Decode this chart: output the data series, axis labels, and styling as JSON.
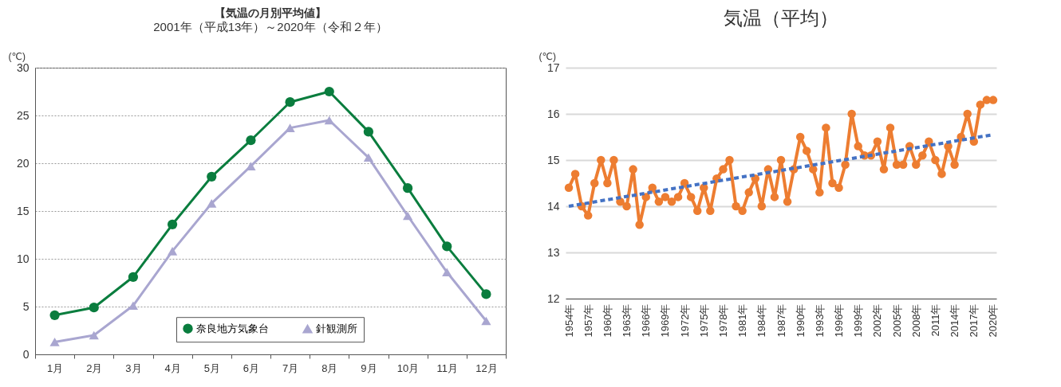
{
  "chart_data": [
    {
      "type": "line",
      "title": "【気温の月別平均値】",
      "subtitle": "2001年（平成13年）～2020年（令和２年）",
      "ylabel": "(℃)",
      "categories": [
        "1月",
        "2月",
        "3月",
        "4月",
        "5月",
        "6月",
        "7月",
        "8月",
        "9月",
        "10月",
        "11月",
        "12月"
      ],
      "series": [
        {
          "name": "奈良地方気象台",
          "color": "#0a7d3e",
          "marker": "circle",
          "values": [
            4.1,
            4.9,
            8.1,
            13.6,
            18.6,
            22.4,
            26.4,
            27.5,
            23.3,
            17.4,
            11.3,
            6.3
          ]
        },
        {
          "name": "針観測所",
          "color": "#a9a6d0",
          "marker": "triangle",
          "values": [
            1.3,
            2.0,
            5.1,
            10.8,
            15.8,
            19.7,
            23.7,
            24.5,
            20.6,
            14.5,
            8.6,
            3.5
          ]
        }
      ],
      "ylim": [
        0,
        30
      ],
      "yticks": [
        0,
        5,
        10,
        15,
        20,
        25,
        30
      ],
      "grid": "y",
      "legend": "bottom"
    },
    {
      "type": "line",
      "title": "気温（平均）",
      "ylabel": "(℃)",
      "categories": [
        "1954年",
        null,
        null,
        "1957年",
        null,
        null,
        "1960年",
        null,
        null,
        "1963年",
        null,
        null,
        "1966年",
        null,
        null,
        "1969年",
        null,
        null,
        "1972年",
        null,
        null,
        "1975年",
        null,
        null,
        "1978年",
        null,
        null,
        "1981年",
        null,
        null,
        "1984年",
        null,
        null,
        "1987年",
        null,
        null,
        "1990年",
        null,
        null,
        "1993年",
        null,
        null,
        "1996年",
        null,
        null,
        "1999年",
        null,
        null,
        "2002年",
        null,
        null,
        "2005年",
        null,
        null,
        "2008年",
        null,
        null,
        "2011年",
        null,
        null,
        "2014年",
        null,
        null,
        "2017年",
        null,
        null,
        "2020年"
      ],
      "series": [
        {
          "color": "#ed7d31",
          "marker": "circle",
          "values": [
            14.4,
            14.7,
            14.0,
            13.8,
            14.5,
            15.0,
            14.5,
            15.0,
            14.1,
            14.0,
            14.8,
            13.6,
            14.2,
            14.4,
            14.1,
            14.2,
            14.1,
            14.2,
            14.5,
            14.2,
            13.9,
            14.4,
            13.9,
            14.6,
            14.8,
            15.0,
            14.0,
            13.9,
            14.3,
            14.6,
            14.0,
            14.8,
            14.2,
            15.0,
            14.1,
            14.8,
            15.5,
            15.2,
            14.8,
            14.3,
            15.7,
            14.5,
            14.4,
            14.9,
            16.0,
            15.3,
            15.1,
            15.1,
            15.4,
            14.8,
            15.7,
            14.9,
            14.9,
            15.3,
            14.9,
            15.1,
            15.4,
            15.0,
            14.7,
            15.3,
            14.9,
            15.5,
            16.0,
            15.4,
            16.2,
            16.3,
            16.3
          ]
        },
        {
          "color": "#4472c4",
          "line_style": "dashed",
          "x": [
            "1954年",
            "2020年"
          ],
          "values": [
            14.0,
            15.55
          ]
        }
      ],
      "ylim": [
        12,
        17
      ],
      "yticks": [
        12,
        13,
        14,
        15,
        16,
        17
      ],
      "grid": "y"
    }
  ]
}
